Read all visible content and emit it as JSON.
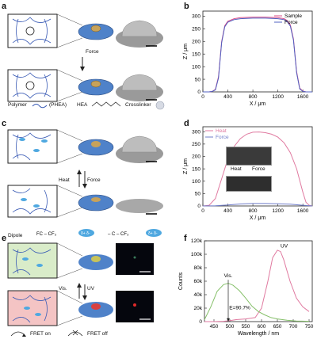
{
  "panels": {
    "a": {
      "letter": "a",
      "arrow_label": "Force",
      "legend": {
        "polymer": "Polymer",
        "phea": "(PHEA)",
        "hea": "HEA",
        "crosslinker": "Crosslinker"
      }
    },
    "b": {
      "letter": "b"
    },
    "c": {
      "letter": "c",
      "arrow_up": "Heat",
      "arrow_down": "Force",
      "legend": {
        "dipole": "Dipole"
      }
    },
    "d": {
      "letter": "d",
      "inset_heat": "Heat",
      "inset_force": "Force"
    },
    "e": {
      "letter": "e",
      "arrow_left": "Vis.",
      "arrow_right": "UV",
      "legend": {
        "fret_on": "FRET on",
        "fret_off": "FRET off"
      }
    },
    "f": {
      "letter": "f",
      "ann_vis": "Vis.",
      "ann_uv": "UV",
      "ann_eff": "E=90.7%"
    }
  },
  "chart_data": [
    {
      "id": "b",
      "type": "line",
      "xlabel": "X / μm",
      "ylabel": "Z / μm",
      "xlim": [
        0,
        1750
      ],
      "ylim": [
        0,
        320
      ],
      "xticks": [
        0,
        400,
        800,
        1200,
        1600
      ],
      "yticks": [
        0,
        50,
        100,
        150,
        200,
        250,
        300
      ],
      "legend": "top-right",
      "series": [
        {
          "name": "Sample",
          "color": "#d94f8a",
          "x": [
            0,
            100,
            150,
            200,
            250,
            300,
            350,
            400,
            500,
            600,
            800,
            1000,
            1200,
            1300,
            1350,
            1400,
            1450,
            1500,
            1550,
            1600,
            1650,
            1700,
            1750
          ],
          "y": [
            0,
            0,
            2,
            10,
            60,
            200,
            262,
            280,
            290,
            294,
            296,
            296,
            294,
            290,
            282,
            265,
            210,
            80,
            15,
            3,
            0,
            0,
            0
          ]
        },
        {
          "name": "Force",
          "color": "#5060c0",
          "x": [
            0,
            100,
            150,
            200,
            250,
            300,
            350,
            400,
            500,
            600,
            800,
            1000,
            1200,
            1300,
            1350,
            1400,
            1450,
            1500,
            1550,
            1600,
            1650,
            1700,
            1750
          ],
          "y": [
            0,
            0,
            2,
            8,
            55,
            195,
            258,
            276,
            286,
            290,
            292,
            292,
            290,
            286,
            278,
            260,
            205,
            75,
            12,
            2,
            0,
            0,
            0
          ]
        }
      ]
    },
    {
      "id": "d",
      "type": "line",
      "xlabel": "X / μm",
      "ylabel": "Z / μm",
      "xlim": [
        0,
        1750
      ],
      "ylim": [
        0,
        320
      ],
      "xticks": [
        0,
        400,
        800,
        1200,
        1600
      ],
      "yticks": [
        0,
        50,
        100,
        150,
        200,
        250,
        300
      ],
      "legend": "top-left",
      "series": [
        {
          "name": "Heat",
          "color": "#e07aa0",
          "x": [
            0,
            100,
            200,
            300,
            400,
            500,
            600,
            700,
            800,
            900,
            1000,
            1100,
            1200,
            1300,
            1400,
            1500,
            1600,
            1650,
            1700,
            1750
          ],
          "y": [
            0,
            3,
            30,
            110,
            190,
            240,
            272,
            290,
            298,
            299,
            296,
            290,
            278,
            255,
            215,
            150,
            55,
            15,
            3,
            0
          ]
        },
        {
          "name": "Force",
          "color": "#6f7cc9",
          "x": [
            0,
            200,
            400,
            600,
            800,
            1000,
            1200,
            1400,
            1600,
            1750
          ],
          "y": [
            0,
            1,
            4,
            8,
            10,
            10,
            9,
            7,
            3,
            0
          ]
        }
      ]
    },
    {
      "id": "f",
      "type": "line",
      "xlabel": "Wavelength / nm",
      "ylabel": "Counts",
      "xlim": [
        420,
        760
      ],
      "ylim": [
        0,
        120000
      ],
      "xticks": [
        450,
        500,
        550,
        600,
        650,
        700,
        750
      ],
      "ytick_values": [
        0,
        20000,
        40000,
        60000,
        80000,
        100000,
        120000
      ],
      "ytick_labels": [
        "0",
        "20k",
        "40k",
        "60k",
        "80k",
        "100k",
        "120k"
      ],
      "series": [
        {
          "name": "UV",
          "color": "#e07aa0",
          "x": [
            420,
            450,
            480,
            500,
            520,
            550,
            580,
            600,
            620,
            635,
            650,
            660,
            670,
            690,
            710,
            730,
            750
          ],
          "y": [
            0,
            0,
            500,
            1500,
            3000,
            4000,
            6000,
            20000,
            60000,
            95000,
            106000,
            104000,
            92000,
            60000,
            35000,
            22000,
            15000
          ]
        },
        {
          "name": "Vis.",
          "color": "#86c06a",
          "x": [
            420,
            440,
            460,
            480,
            495,
            510,
            530,
            550,
            570,
            590,
            610,
            630,
            650,
            680,
            710,
            750
          ],
          "y": [
            3000,
            22000,
            45000,
            55000,
            57000,
            54000,
            46000,
            35000,
            23000,
            15000,
            10000,
            6000,
            4000,
            2000,
            1000,
            500
          ]
        }
      ]
    }
  ]
}
